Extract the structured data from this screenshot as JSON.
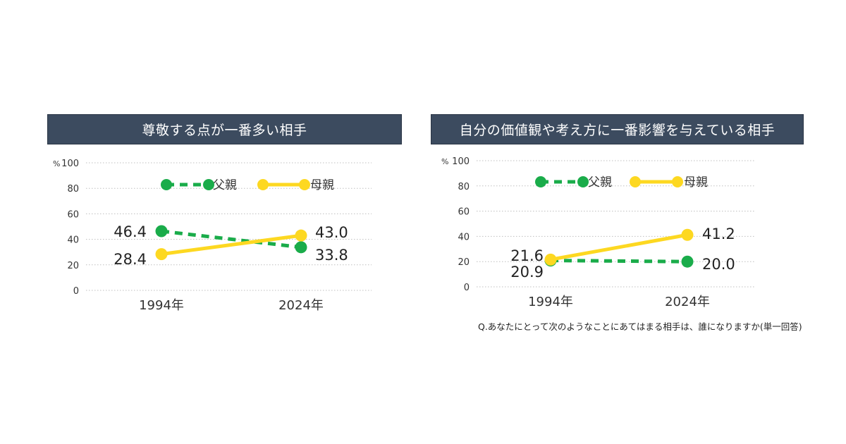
{
  "chart_data": [
    {
      "type": "line",
      "title": "尊敬する点が一番多い相手",
      "ylabel": "%",
      "ylim": [
        0,
        100
      ],
      "yticks": [
        "0",
        "20",
        "40",
        "60",
        "80",
        "100"
      ],
      "categories": [
        "1994年",
        "2024年"
      ],
      "legend": "top",
      "grid": true,
      "series": [
        {
          "name": "父親",
          "values": [
            46.4,
            33.8
          ],
          "labels": [
            "46.4",
            "33.8"
          ],
          "color": "#1aac4a",
          "style": "dashed"
        },
        {
          "name": "母親",
          "values": [
            28.4,
            43.0
          ],
          "labels": [
            "28.4",
            "43.0"
          ],
          "color": "#fdd821",
          "style": "solid"
        }
      ]
    },
    {
      "type": "line",
      "title": "自分の価値観や考え方に一番影響を与えている相手",
      "ylabel": "%",
      "ylim": [
        0,
        100
      ],
      "yticks": [
        "0",
        "20",
        "40",
        "60",
        "80",
        "100"
      ],
      "categories": [
        "1994年",
        "2024年"
      ],
      "legend": "top",
      "grid": true,
      "series": [
        {
          "name": "父親",
          "values": [
            20.9,
            20.0
          ],
          "labels": [
            "20.9",
            "20.0"
          ],
          "color": "#1aac4a",
          "style": "dashed"
        },
        {
          "name": "母親",
          "values": [
            21.6,
            41.2
          ],
          "labels": [
            "21.6",
            "41.2"
          ],
          "color": "#fdd821",
          "style": "solid"
        }
      ]
    }
  ],
  "footnote": "Q.あなたにとって次のようなことにあてはまる相手は、誰になりますか(単一回答)"
}
